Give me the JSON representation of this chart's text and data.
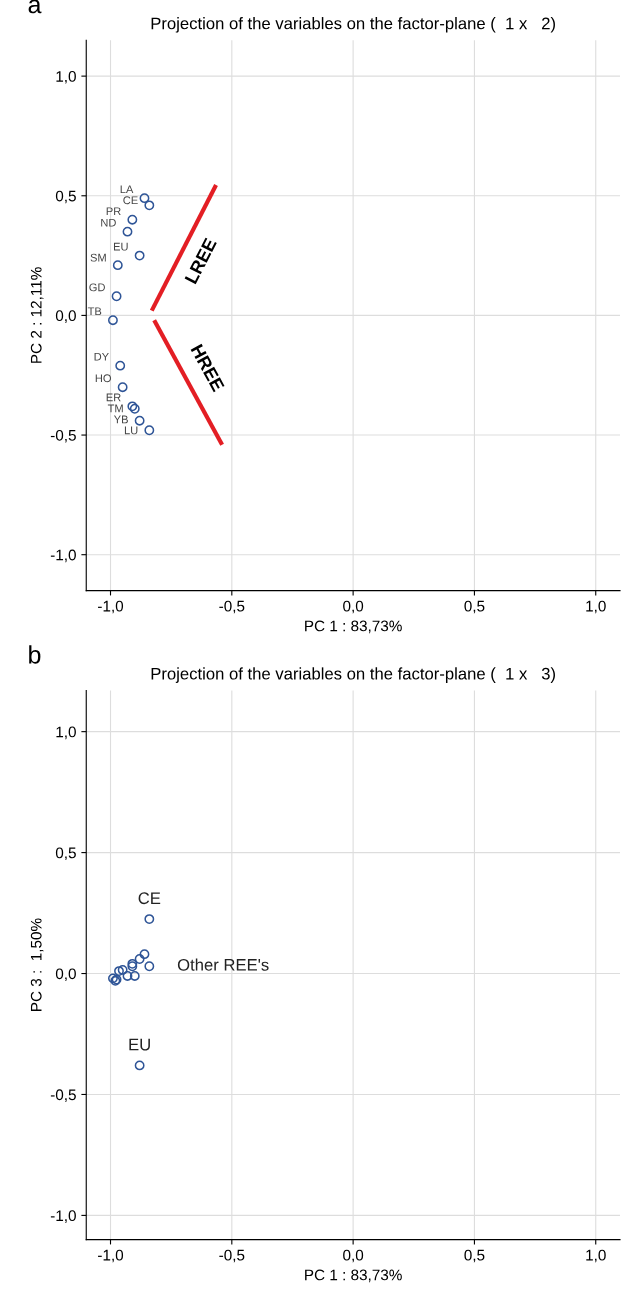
{
  "chart_data": [
    {
      "type": "scatter",
      "title": "Projection of the variables on the factor-plane (  1 x   2)",
      "xlabel": "PC 1 : 83,73%",
      "ylabel": "PC 2 : 12,11%",
      "xlim": [
        -1.1,
        1.1
      ],
      "ylim": [
        -1.15,
        1.15
      ],
      "xticks": [
        {
          "value": -1.0,
          "label": "-1,0"
        },
        {
          "value": -0.5,
          "label": "-0,5"
        },
        {
          "value": 0.0,
          "label": "0,0"
        },
        {
          "value": 0.5,
          "label": "0,5"
        },
        {
          "value": 1.0,
          "label": "1,0"
        }
      ],
      "yticks": [
        {
          "value": -1.0,
          "label": "-1,0"
        },
        {
          "value": -0.5,
          "label": "-0,5"
        },
        {
          "value": 0.0,
          "label": "0,0"
        },
        {
          "value": 0.5,
          "label": "0,5"
        },
        {
          "value": 1.0,
          "label": "1,0"
        }
      ],
      "grid": true,
      "marker": "circle",
      "series": [
        {
          "color": "#2f5597",
          "x": [
            -0.86,
            -0.84,
            -0.91,
            -0.93,
            -0.88,
            -0.97,
            -0.975,
            -0.99,
            -0.96,
            -0.95,
            -0.91,
            -0.9,
            -0.88,
            -0.84
          ],
          "values": [
            0.49,
            0.46,
            0.4,
            0.35,
            0.25,
            0.21,
            0.08,
            -0.02,
            -0.21,
            -0.3,
            -0.38,
            -0.39,
            -0.44,
            -0.48
          ]
        },
        {
          "name": "LREE",
          "type": "line",
          "marker": "none",
          "color": "#e31e24",
          "x": [
            -0.83,
            -0.565
          ],
          "values": [
            0.02,
            0.545
          ]
        },
        {
          "name": "HREE",
          "type": "line",
          "marker": "none",
          "color": "#e31e24",
          "x": [
            -0.82,
            -0.54
          ],
          "values": [
            -0.02,
            -0.54
          ]
        }
      ],
      "annotations": [
        "a",
        {
          "text": "LA",
          "x": -0.86,
          "y": 0.49
        },
        {
          "text": "CE",
          "x": -0.84,
          "y": 0.46
        },
        {
          "text": "PR",
          "x": -0.91,
          "y": 0.4
        },
        {
          "text": "ND",
          "x": -0.93,
          "y": 0.35
        },
        {
          "text": "EU",
          "x": -0.88,
          "y": 0.25
        },
        {
          "text": "SM",
          "x": -0.97,
          "y": 0.21
        },
        {
          "text": "GD",
          "x": -0.975,
          "y": 0.08
        },
        {
          "text": "TB",
          "x": -0.99,
          "y": -0.02
        },
        {
          "text": "DY",
          "x": -0.96,
          "y": -0.21
        },
        {
          "text": "HO",
          "x": -0.95,
          "y": -0.3
        },
        {
          "text": "ER",
          "x": -0.91,
          "y": -0.38
        },
        {
          "text": "TM",
          "x": -0.9,
          "y": -0.39
        },
        {
          "text": "YB",
          "x": -0.88,
          "y": -0.44
        },
        {
          "text": "LU",
          "x": -0.84,
          "y": -0.48
        }
      ]
    },
    {
      "type": "scatter",
      "title": "Projection of the variables on the factor-plane (  1 x   3)",
      "xlabel": "PC 1 : 83,73%",
      "ylabel": "PC 3 :  1,50%",
      "xlim": [
        -1.1,
        1.1
      ],
      "ylim": [
        -1.1,
        1.17
      ],
      "xticks": [
        {
          "value": -1.0,
          "label": "-1,0"
        },
        {
          "value": -0.5,
          "label": "-0,5"
        },
        {
          "value": 0.0,
          "label": "0,0"
        },
        {
          "value": 0.5,
          "label": "0,5"
        },
        {
          "value": 1.0,
          "label": "1,0"
        }
      ],
      "yticks": [
        {
          "value": -1.0,
          "label": "-1,0"
        },
        {
          "value": -0.5,
          "label": "-0,5"
        },
        {
          "value": 0.0,
          "label": "0,0"
        },
        {
          "value": 0.5,
          "label": "0,5"
        },
        {
          "value": 1.0,
          "label": "1,0"
        }
      ],
      "grid": true,
      "marker": "circle",
      "series": [
        {
          "color": "#2f5597",
          "x": [
            -0.84,
            -0.88,
            -0.86,
            -0.84,
            -0.88,
            -0.91,
            -0.91,
            -0.9,
            -0.93,
            -0.95,
            -0.965,
            -0.99,
            -0.98,
            -0.975
          ],
          "values": [
            0.225,
            -0.38,
            0.08,
            0.03,
            0.06,
            0.04,
            0.03,
            -0.01,
            -0.01,
            0.015,
            0.01,
            -0.02,
            -0.03,
            -0.025
          ]
        }
      ],
      "annotations": [
        "b",
        {
          "text": "CE",
          "x": -0.84,
          "y": 0.225
        },
        {
          "text": "EU",
          "x": -0.88,
          "y": -0.38
        },
        {
          "text": "Other REE's",
          "x": -0.84,
          "y": 0.03
        }
      ]
    }
  ]
}
